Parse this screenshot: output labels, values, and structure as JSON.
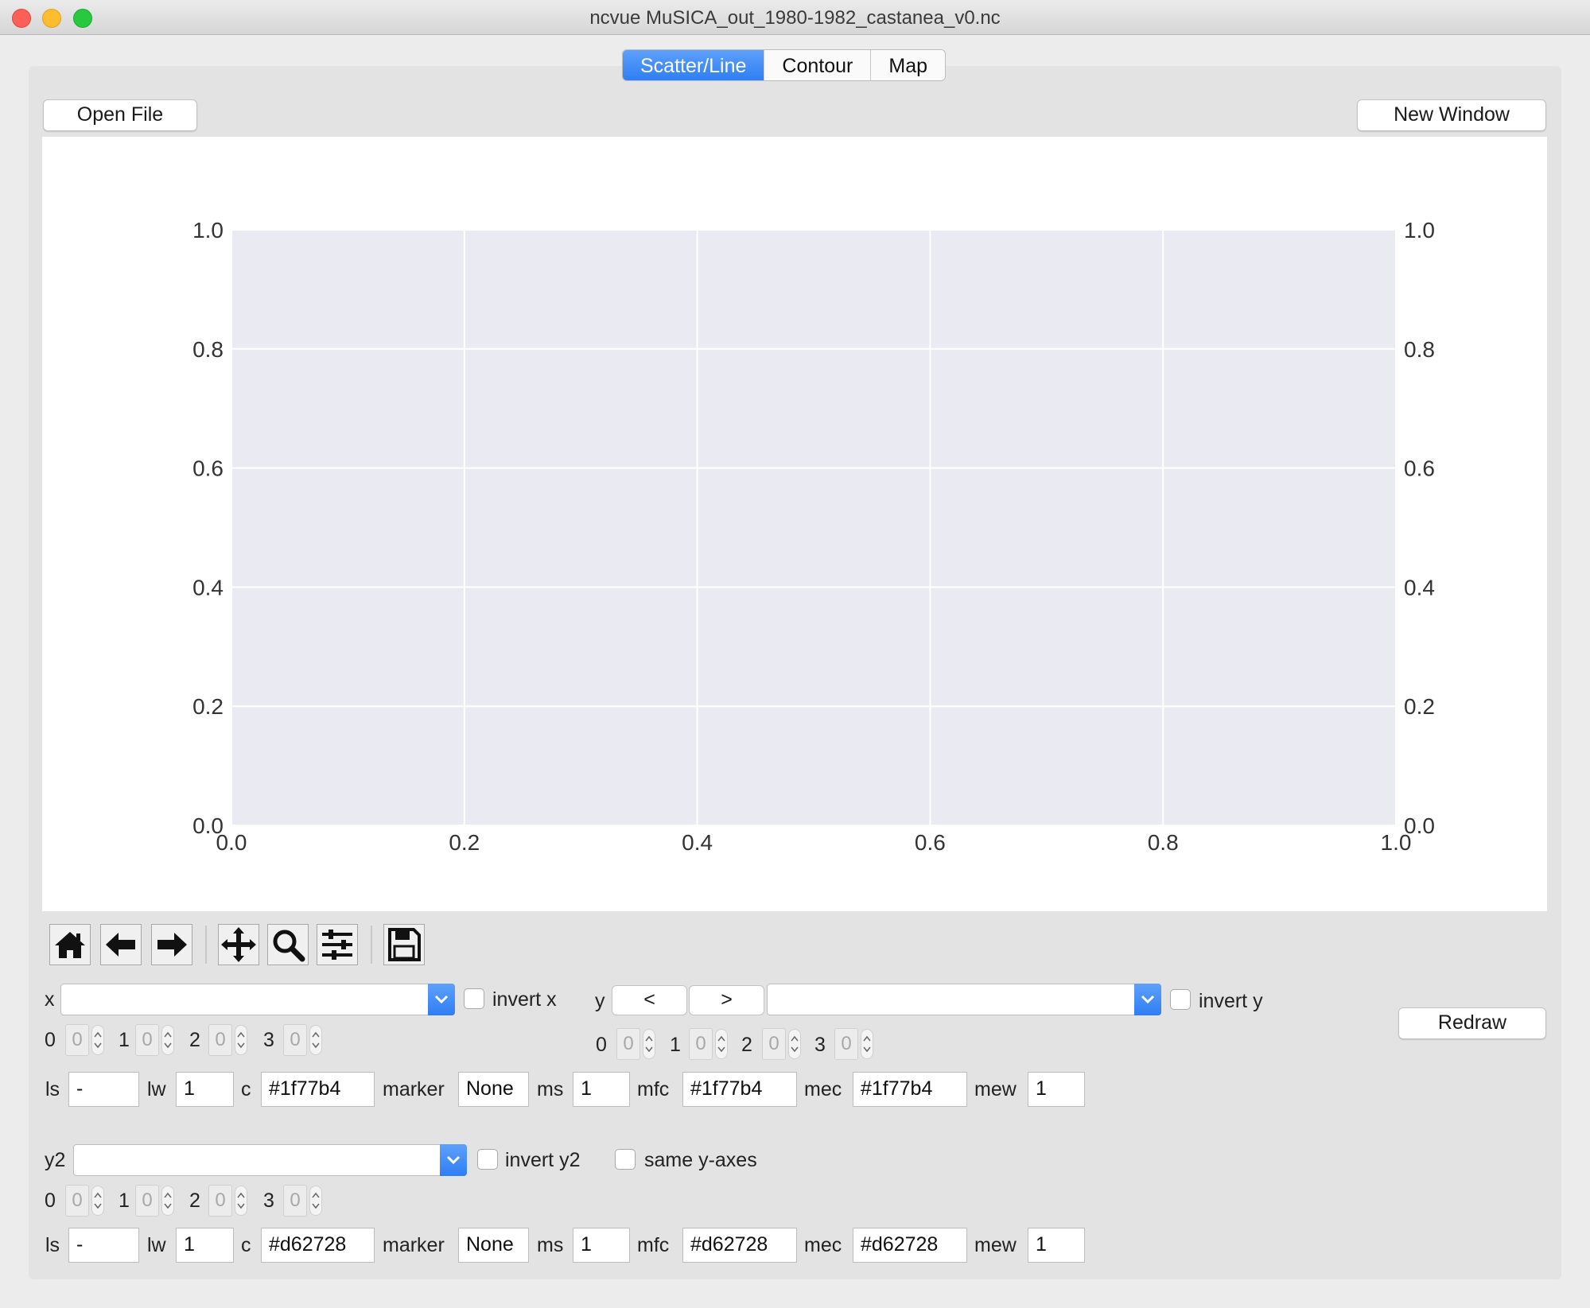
{
  "window": {
    "title": "ncvue MuSICA_out_1980-1982_castanea_v0.nc"
  },
  "tabs": [
    {
      "label": "Scatter/Line",
      "active": true
    },
    {
      "label": "Contour",
      "active": false
    },
    {
      "label": "Map",
      "active": false
    }
  ],
  "buttons": {
    "open_file": "Open File",
    "new_window": "New Window",
    "redraw": "Redraw",
    "y_prev": "<",
    "y_next": ">"
  },
  "chart_data": {
    "type": "line",
    "title": "",
    "xlabel": "",
    "ylabel": "",
    "xlim": [
      0.0,
      1.0
    ],
    "ylim": [
      0.0,
      1.0
    ],
    "y2lim": [
      0.0,
      1.0
    ],
    "xticks": [
      "0.0",
      "0.2",
      "0.4",
      "0.6",
      "0.8",
      "1.0"
    ],
    "yticks": [
      "0.0",
      "0.2",
      "0.4",
      "0.6",
      "0.8",
      "1.0"
    ],
    "y2ticks": [
      "0.0",
      "0.2",
      "0.4",
      "0.6",
      "0.8",
      "1.0"
    ],
    "grid": true,
    "background": "#eaeaf2",
    "series": []
  },
  "toolbar": {
    "tools": [
      "home-icon",
      "back-arrow-icon",
      "forward-arrow-icon",
      "pan-icon",
      "zoom-icon",
      "subplots-configure-icon",
      "save-icon"
    ]
  },
  "x_controls": {
    "label": "x",
    "invert_label": "invert x",
    "dims": [
      {
        "label": "0",
        "value": "0"
      },
      {
        "label": "1",
        "value": "0"
      },
      {
        "label": "2",
        "value": "0"
      },
      {
        "label": "3",
        "value": "0"
      }
    ],
    "style": [
      {
        "label": "ls",
        "value": "-"
      },
      {
        "label": "lw",
        "value": "1"
      },
      {
        "label": "c",
        "value": "#1f77b4"
      },
      {
        "label": "marker",
        "value": "None"
      },
      {
        "label": "ms",
        "value": "1"
      },
      {
        "label": "mfc",
        "value": "#1f77b4"
      },
      {
        "label": "mec",
        "value": "#1f77b4"
      },
      {
        "label": "mew",
        "value": "1"
      }
    ]
  },
  "y_controls": {
    "label": "y",
    "invert_label": "invert y",
    "dims": [
      {
        "label": "0",
        "value": "0"
      },
      {
        "label": "1",
        "value": "0"
      },
      {
        "label": "2",
        "value": "0"
      },
      {
        "label": "3",
        "value": "0"
      }
    ]
  },
  "y2_controls": {
    "label": "y2",
    "invert_label": "invert y2",
    "same_axes_label": "same y-axes",
    "dims": [
      {
        "label": "0",
        "value": "0"
      },
      {
        "label": "1",
        "value": "0"
      },
      {
        "label": "2",
        "value": "0"
      },
      {
        "label": "3",
        "value": "0"
      }
    ],
    "style": [
      {
        "label": "ls",
        "value": "-"
      },
      {
        "label": "lw",
        "value": "1"
      },
      {
        "label": "c",
        "value": "#d62728"
      },
      {
        "label": "marker",
        "value": "None"
      },
      {
        "label": "ms",
        "value": "1"
      },
      {
        "label": "mfc",
        "value": "#d62728"
      },
      {
        "label": "mec",
        "value": "#d62728"
      },
      {
        "label": "mew",
        "value": "1"
      }
    ]
  },
  "colors": {
    "accent": "#2f7ef5",
    "plot_background": "#eaeaf2",
    "series1": "#1f77b4",
    "series2": "#d62728"
  }
}
